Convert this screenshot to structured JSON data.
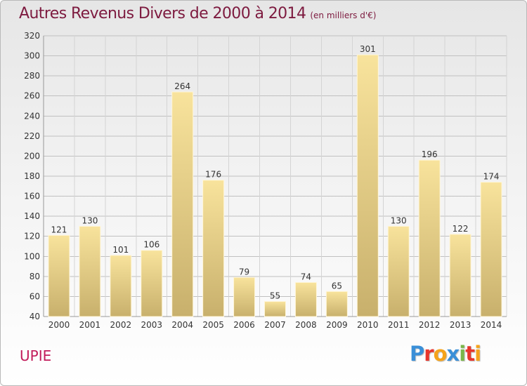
{
  "header": {
    "title": "Autres Revenus Divers de 2000 à 2014",
    "subtitle": "(en milliers d'€)"
  },
  "footer": {
    "commune": "UPIE",
    "brand": "Proxiti",
    "brand_colors": [
      "#3a8fd8",
      "#e8352c",
      "#f5a31a",
      "#3a8fd8",
      "#7ab648",
      "#e8352c",
      "#f5a31a"
    ]
  },
  "colors": {
    "title": "#7d1a3f",
    "commune": "#c21b5a",
    "bar_light": "#f8e39c",
    "bar_dark": "#c8b06c",
    "grid": "#c0c0c0"
  },
  "chart_data": {
    "type": "bar",
    "title": "Autres Revenus Divers de 2000 à 2014",
    "subtitle": "(en milliers d'€)",
    "categories": [
      "2000",
      "2001",
      "2002",
      "2003",
      "2004",
      "2005",
      "2006",
      "2007",
      "2008",
      "2009",
      "2010",
      "2011",
      "2012",
      "2013",
      "2014"
    ],
    "values": [
      121,
      130,
      101,
      106,
      264,
      176,
      79,
      55,
      74,
      65,
      301,
      130,
      196,
      122,
      174
    ],
    "ylim": [
      40,
      320
    ],
    "yticks": [
      40,
      60,
      80,
      100,
      120,
      140,
      160,
      180,
      200,
      220,
      240,
      260,
      280,
      300,
      320
    ],
    "grid": true,
    "data_labels": true
  }
}
